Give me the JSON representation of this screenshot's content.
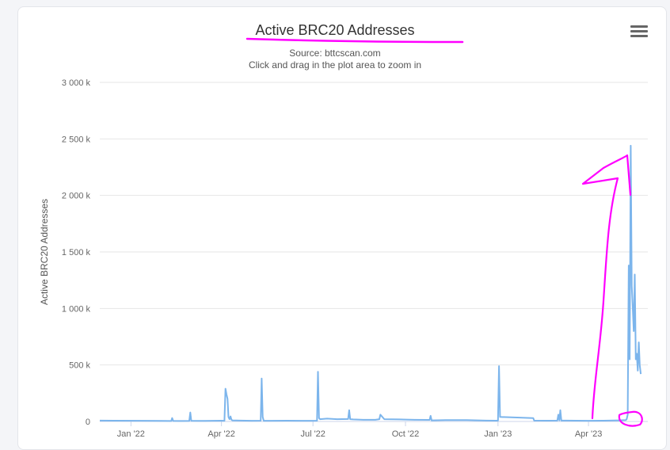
{
  "chart_data": {
    "type": "line",
    "title": "Active BRC20 Addresses",
    "subtitle": "Source: bttcscan.com",
    "hint": "Click and drag in the plot area to zoom in",
    "ylabel": "Active BRC20 Addresses",
    "xlabel": "",
    "ylim": [
      0,
      3000000
    ],
    "y_ticks": [
      0,
      500000,
      1000000,
      1500000,
      2000000,
      2500000,
      3000000
    ],
    "y_tick_labels": [
      "0",
      "500 k",
      "1 000 k",
      "1 500 k",
      "2 000 k",
      "2 500 k",
      "3 000 k"
    ],
    "x_tick_labels": [
      "Jan '22",
      "Apr '22",
      "Jul '22",
      "Oct '22",
      "Jan '23",
      "Apr '23"
    ],
    "x_ticks": [
      "2022-01-01",
      "2022-04-01",
      "2022-07-01",
      "2022-10-01",
      "2023-01-01",
      "2023-04-01"
    ],
    "xlim": [
      "2021-12-01",
      "2023-05-30"
    ],
    "grid": true,
    "legend": false,
    "color": "#7cb5ec",
    "series": [
      {
        "x": [
          "2021-12-01",
          "2021-12-15",
          "2022-01-15",
          "2022-02-01",
          "2022-02-10",
          "2022-02-11",
          "2022-02-12",
          "2022-02-20",
          "2022-02-28",
          "2022-03-01",
          "2022-03-02",
          "2022-03-15",
          "2022-04-01",
          "2022-04-04",
          "2022-04-05",
          "2022-04-06",
          "2022-04-07",
          "2022-04-08",
          "2022-04-09",
          "2022-04-10",
          "2022-04-11",
          "2022-04-12",
          "2022-04-20",
          "2022-05-01",
          "2022-05-10",
          "2022-05-11",
          "2022-05-12",
          "2022-05-13",
          "2022-05-20",
          "2022-06-05",
          "2022-06-20",
          "2022-07-01",
          "2022-07-05",
          "2022-07-06",
          "2022-07-07",
          "2022-07-08",
          "2022-07-15",
          "2022-07-25",
          "2022-08-05",
          "2022-08-06",
          "2022-08-07",
          "2022-08-10",
          "2022-08-20",
          "2022-09-01",
          "2022-09-05",
          "2022-09-06",
          "2022-09-10",
          "2022-09-25",
          "2022-10-10",
          "2022-10-25",
          "2022-10-26",
          "2022-10-27",
          "2022-11-10",
          "2022-12-01",
          "2022-12-20",
          "2022-12-31",
          "2023-01-01",
          "2023-01-02",
          "2023-01-03",
          "2023-01-20",
          "2023-02-05",
          "2023-02-06",
          "2023-02-20",
          "2023-03-01",
          "2023-03-02",
          "2023-03-03",
          "2023-03-04",
          "2023-03-05",
          "2023-03-10",
          "2023-03-20",
          "2023-04-01",
          "2023-04-15",
          "2023-05-01",
          "2023-05-08",
          "2023-05-09",
          "2023-05-10",
          "2023-05-11",
          "2023-05-12",
          "2023-05-13",
          "2023-05-14",
          "2023-05-15",
          "2023-05-16",
          "2023-05-17",
          "2023-05-18",
          "2023-05-19",
          "2023-05-20",
          "2023-05-21",
          "2023-05-22",
          "2023-05-23"
        ],
        "values": [
          8000,
          7000,
          6000,
          5000,
          4000,
          30000,
          5000,
          4000,
          5000,
          80000,
          6000,
          5000,
          7000,
          6000,
          290000,
          240000,
          200000,
          40000,
          20000,
          45000,
          15000,
          10000,
          8000,
          6000,
          7000,
          380000,
          40000,
          6000,
          6000,
          7000,
          6000,
          6000,
          7000,
          440000,
          30000,
          20000,
          25000,
          20000,
          22000,
          100000,
          20000,
          18000,
          15000,
          15000,
          20000,
          60000,
          20000,
          18000,
          15000,
          14000,
          50000,
          10000,
          12000,
          12000,
          8000,
          7000,
          8000,
          490000,
          40000,
          35000,
          30000,
          8000,
          7000,
          8000,
          60000,
          10000,
          100000,
          8000,
          8000,
          7000,
          6000,
          7000,
          10000,
          12000,
          20000,
          60000,
          1380000,
          550000,
          2440000,
          1200000,
          1000000,
          800000,
          1300000,
          550000,
          600000,
          450000,
          700000,
          500000,
          420000
        ]
      }
    ]
  }
}
